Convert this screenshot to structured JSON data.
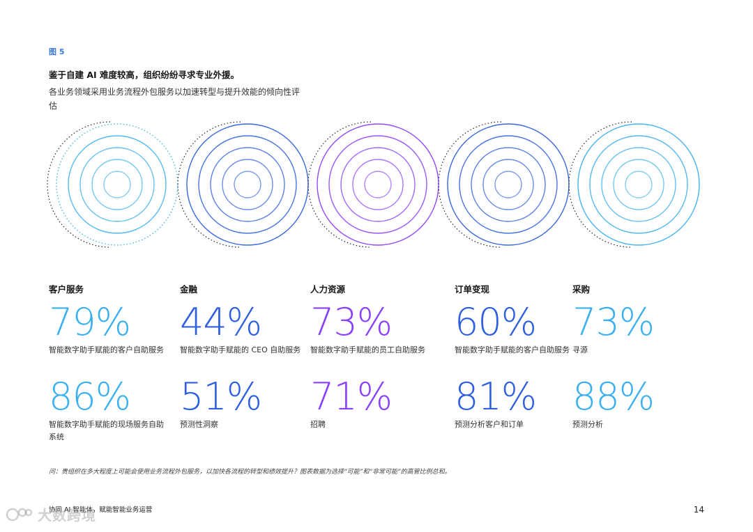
{
  "figure": {
    "label": "图 5",
    "title": "鉴于自建 AI 难度较高，组织纷纷寻求专业外援。",
    "subtitle": "各业务领域采用业务流程外包服务以加速转型与提升效能的倾向性评估"
  },
  "colors": {
    "light_blue": "#3bb0ee",
    "dark_blue": "#2e5fe0",
    "purple": "#8a3ffc"
  },
  "columns": [
    {
      "title": "客户服务",
      "color": "#3bb0ee",
      "stats": [
        {
          "value": "79%",
          "desc": "智能数字助手赋能的客户自助服务"
        },
        {
          "value": "86%",
          "desc": "智能数字助手赋能的现场服务自助系统"
        }
      ]
    },
    {
      "title": "金融",
      "color": "#2e5fe0",
      "stats": [
        {
          "value": "44%",
          "desc": "智能数字助手赋能的 CEO 自助服务"
        },
        {
          "value": "51%",
          "desc": "预测性洞察"
        }
      ]
    },
    {
      "title": "人力资源",
      "color": "#8a3ffc",
      "stats": [
        {
          "value": "73%",
          "desc": "智能数字助手赋能的员工自助服务"
        },
        {
          "value": "71%",
          "desc": "招聘"
        }
      ]
    },
    {
      "title": "订单变现",
      "color": "#2e5fe0",
      "stats": [
        {
          "value": "60%",
          "desc": "智能数字助手赋能的客户自助服务"
        },
        {
          "value": "81%",
          "desc": "预测分析客户和订单"
        }
      ]
    },
    {
      "title": "采购",
      "color": "#3bb0ee",
      "stats": [
        {
          "value": "73%",
          "desc": "寻源"
        },
        {
          "value": "88%",
          "desc": "预测分析"
        }
      ]
    }
  ],
  "footnote": "问：贵组织在多大程度上可能会使用业务流程外包服务，以加快各流程的转型和绩效提升？图表数据为选择“可能”和“非常可能”的高管比例总和。",
  "footer": {
    "text": "协同 AI 智能体，赋能智能业务运营",
    "page_number": "14"
  },
  "watermark": {
    "text": "大数跨境"
  }
}
